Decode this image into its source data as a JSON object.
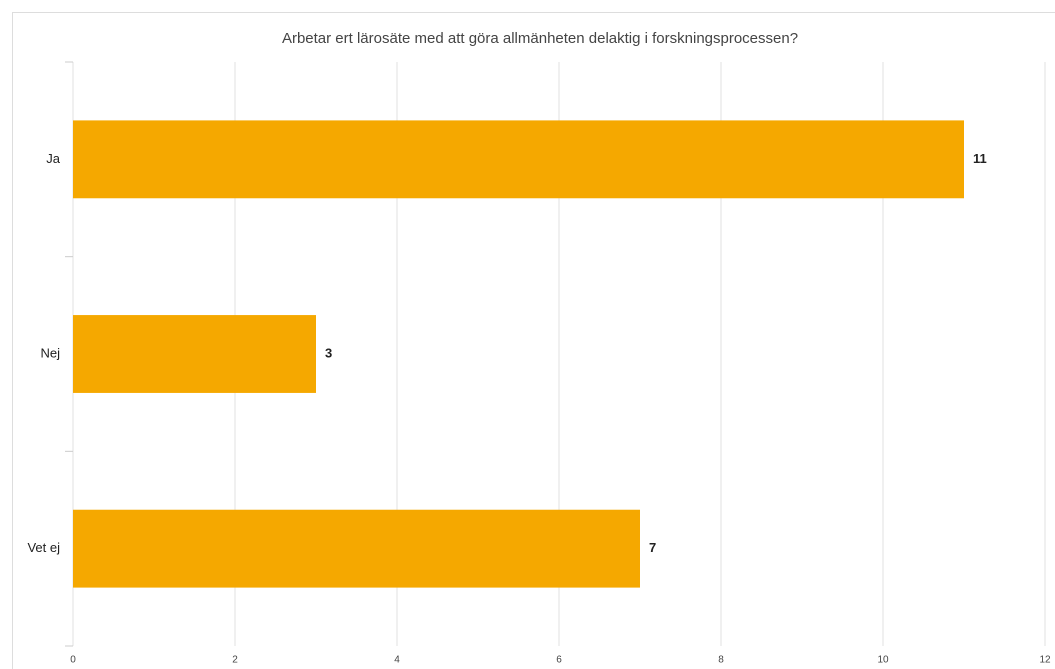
{
  "chart_data": {
    "type": "bar",
    "orientation": "horizontal",
    "title": "Arbetar ert lärosäte med att göra allmänheten delaktig i forskningsprocessen?",
    "categories": [
      "Ja",
      "Nej",
      "Vet ej"
    ],
    "values": [
      11,
      3,
      7
    ],
    "color": "#f5a800",
    "xlim": [
      0,
      12
    ],
    "xticks": [
      0,
      2,
      4,
      6,
      8,
      10,
      12
    ],
    "grid": true
  }
}
